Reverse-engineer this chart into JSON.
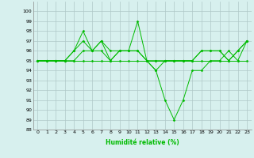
{
  "xlabel": "Humidité relative (%)",
  "background_color": "#d7f0ee",
  "grid_color": "#b0c8c8",
  "line_color": "#00bb00",
  "ylim": [
    88,
    101
  ],
  "xlim": [
    -0.5,
    23.5
  ],
  "yticks": [
    88,
    89,
    90,
    91,
    92,
    93,
    94,
    95,
    96,
    97,
    98,
    99,
    100
  ],
  "xticks": [
    0,
    1,
    2,
    3,
    4,
    5,
    6,
    7,
    8,
    9,
    10,
    11,
    12,
    13,
    14,
    15,
    16,
    17,
    18,
    19,
    20,
    21,
    22,
    23
  ],
  "series": [
    [
      95,
      95,
      95,
      95,
      95,
      95,
      95,
      95,
      95,
      95,
      95,
      95,
      95,
      95,
      95,
      95,
      95,
      95,
      95,
      95,
      95,
      95,
      95,
      95
    ],
    [
      95,
      95,
      95,
      95,
      96,
      98,
      96,
      97,
      96,
      96,
      96,
      99,
      95,
      94,
      91,
      89,
      91,
      94,
      94,
      95,
      95,
      96,
      95,
      97
    ],
    [
      95,
      95,
      95,
      95,
      96,
      97,
      96,
      97,
      95,
      96,
      96,
      96,
      95,
      94,
      95,
      95,
      95,
      95,
      96,
      96,
      96,
      95,
      96,
      97
    ],
    [
      95,
      95,
      95,
      95,
      95,
      96,
      96,
      96,
      95,
      96,
      96,
      96,
      95,
      95,
      95,
      95,
      95,
      95,
      96,
      96,
      96,
      95,
      96,
      97
    ]
  ]
}
